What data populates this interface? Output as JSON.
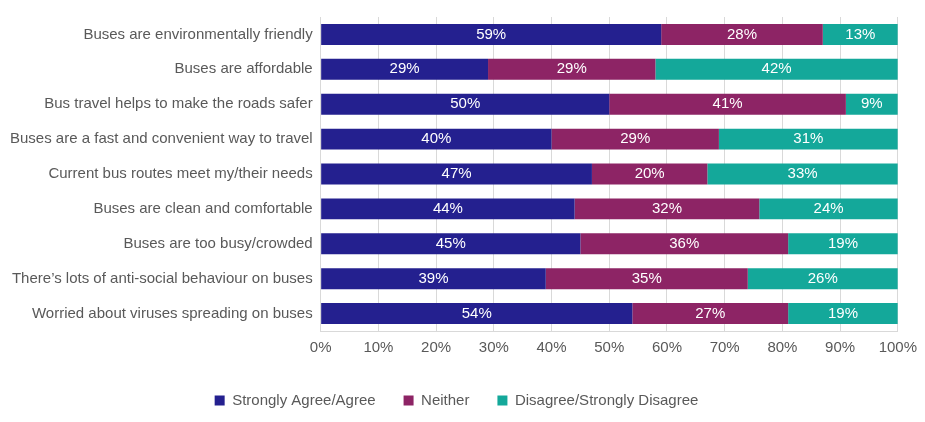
{
  "chart_data": {
    "type": "bar",
    "orientation": "horizontal",
    "stacked": true,
    "data_labels": true,
    "grid": true,
    "legend": "bottom",
    "categories": [
      "Buses are environmentally friendly",
      "Buses are affordable",
      "Bus travel helps to make the roads safer",
      "Buses are a fast and convenient way to travel",
      "Current bus routes meet my/their needs",
      "Buses are clean and comfortable",
      "Buses are too busy/crowded",
      "There’s lots of anti-social behaviour on buses",
      "Worried about viruses spreading on buses"
    ],
    "series": [
      {
        "name": "Strongly Agree/Agree",
        "color": "#24208f",
        "values": [
          59,
          29,
          50,
          40,
          47,
          44,
          45,
          39,
          54
        ],
        "value_labels": [
          "59%",
          "29%",
          "50%",
          "40%",
          "47%",
          "44%",
          "45%",
          "39%",
          "54%"
        ]
      },
      {
        "name": "Neither",
        "color": "#8d2465",
        "values": [
          28,
          29,
          41,
          29,
          20,
          32,
          36,
          35,
          27
        ],
        "value_labels": [
          "28%",
          "29%",
          "41%",
          "29%",
          "20%",
          "32%",
          "36%",
          "35%",
          "27%"
        ]
      },
      {
        "name": "Disagree/Strongly Disagree",
        "color": "#14a89a",
        "values": [
          13,
          42,
          9,
          31,
          33,
          24,
          19,
          26,
          19
        ],
        "value_labels": [
          "13%",
          "42%",
          "9%",
          "31%",
          "33%",
          "24%",
          "19%",
          "26%",
          "19%"
        ]
      }
    ],
    "xlim": [
      0,
      100
    ],
    "xticks": [
      {
        "value": 0,
        "label": "0%"
      },
      {
        "value": 10,
        "label": "10%"
      },
      {
        "value": 20,
        "label": "20%"
      },
      {
        "value": 30,
        "label": "30%"
      },
      {
        "value": 40,
        "label": "40%"
      },
      {
        "value": 50,
        "label": "50%"
      },
      {
        "value": 60,
        "label": "60%"
      },
      {
        "value": 70,
        "label": "70%"
      },
      {
        "value": 80,
        "label": "80%"
      },
      {
        "value": 90,
        "label": "90%"
      },
      {
        "value": 100,
        "label": "100%"
      }
    ]
  }
}
